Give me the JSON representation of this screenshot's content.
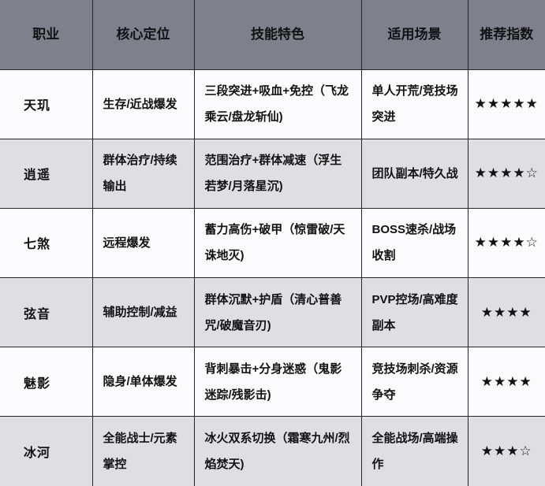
{
  "colors": {
    "header-bg": "#7e818b",
    "row-light": "#fbfbfd",
    "row-dark": "#dfdfe1",
    "border-color": "#26262a",
    "text-color": "#121214",
    "star-color": "#121214"
  },
  "table": {
    "headers": {
      "job": "职业",
      "role": "核心定位",
      "skills": "技能特色",
      "scenes": "适用场景",
      "rating": "推荐指数"
    },
    "rows": [
      {
        "job": "天玑",
        "role": "生存/近战爆发",
        "skills": "三段突进+吸血+免控（飞龙乘云/盘龙斩仙)",
        "scenes": "单人开荒/竞技场突进",
        "rating": "★★★★★"
      },
      {
        "job": "逍遥",
        "role": "群体治疗/持续输出",
        "skills": "范围治疗+群体减速（浮生若梦/月落星沉)",
        "scenes": "团队副本/特久战",
        "rating": "★★★★☆"
      },
      {
        "job": "七煞",
        "role": "远程爆发",
        "skills": "蓄力高伤+破甲（惊雷破/天诛地灭)",
        "scenes": "BOSS速杀/战场收割",
        "rating": "★★★★☆"
      },
      {
        "job": "弦音",
        "role": "辅助控制/减益",
        "skills": "群体沉默+护盾（清心普善咒/破魔音刃)",
        "scenes": "PVP控场/高难度副本",
        "rating": "★★★★"
      },
      {
        "job": "魅影",
        "role": "隐身/单体爆发",
        "skills": "背刺暴击+分身迷惑（鬼影迷踪/残影击)",
        "scenes": "竞技场刺杀/资源争夺",
        "rating": "★★★★"
      },
      {
        "job": "冰河",
        "role": "全能战士/元素掌控",
        "skills": "冰火双系切换（霜寒九州/烈焰焚天)",
        "scenes": "全能战场/高端操作",
        "rating": "★★★☆"
      }
    ]
  }
}
